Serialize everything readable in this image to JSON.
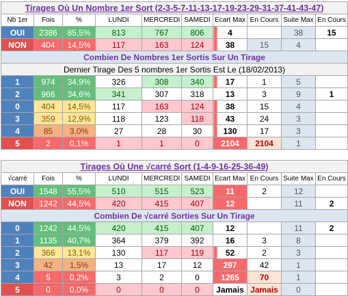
{
  "tables": [
    {
      "title": "Tirages Où Un Nombre 1er Sort (2-3-5-7-11-13-17-19-23-29-31-37-41-43-47)",
      "header": [
        "Nb 1er",
        "Fois",
        "%",
        "LUNDI",
        "MERCREDI",
        "SAMEDI",
        "Ecart Max",
        "En Cours",
        "Suite Max",
        "En Cours"
      ],
      "rows": [
        [
          "OUI",
          "2386",
          "85,5%",
          "813",
          "767",
          "806",
          "4",
          null,
          "38",
          "15"
        ],
        [
          "NON",
          "404",
          "14,5%",
          "117",
          "163",
          "124",
          "38",
          "15",
          "4",
          null
        ]
      ],
      "subtitle": "Combien De Nombres 1er Sortis  Sur Un Tirage",
      "note": "Dernier Tirage Des 5 nombres 1er Sortis Est Le (18/02/2013)",
      "detail_rows": [
        [
          "1",
          "974",
          "34,9%",
          "326",
          "308",
          "340",
          "17",
          "1",
          "5",
          null
        ],
        [
          "2",
          "966",
          "34,6%",
          "341",
          "307",
          "318",
          "13",
          "3",
          "9",
          "1"
        ],
        [
          "0",
          "404",
          "14,5%",
          "117",
          "163",
          "124",
          "38",
          "15",
          "4",
          null
        ],
        [
          "3",
          "359",
          "12,9%",
          "118",
          "123",
          "118",
          "43",
          "24",
          "3",
          null
        ],
        [
          "4",
          "85",
          "3,0%",
          "27",
          "28",
          "30",
          "130",
          "17",
          "3",
          null
        ],
        [
          "5",
          "2",
          "0,1%",
          "1",
          "1",
          "0",
          "2104",
          "2104",
          "1",
          null
        ]
      ]
    },
    {
      "title": "Tirages Où Une  √carré Sort (1-4-9-16-25-36-49)",
      "header": [
        "√carré",
        "Fois",
        "%",
        "LUNDI",
        "MERCREDI",
        "SAMEDI",
        "Ecart Max",
        "En Cours",
        "Suite Max",
        "En Cours"
      ],
      "rows": [
        [
          "OUI",
          "1548",
          "55,5%",
          "510",
          "515",
          "523",
          "11",
          "2",
          "12",
          null
        ],
        [
          "NON",
          "1242",
          "44,5%",
          "420",
          "415",
          "407",
          "12",
          null,
          "11",
          "2"
        ]
      ],
      "subtitle": "Combien De  √carré  Sorties Sur Un Tirage",
      "detail_rows": [
        [
          "0",
          "1242",
          "44,5%",
          "420",
          "415",
          "407",
          "12",
          null,
          "11",
          "2"
        ],
        [
          "1",
          "1135",
          "40,7%",
          "364",
          "379",
          "392",
          "16",
          "3",
          "8",
          null
        ],
        [
          "2",
          "366",
          "13,1%",
          "130",
          "117",
          "119",
          "52",
          "2",
          "3",
          null
        ],
        [
          "3",
          "42",
          "1,5%",
          "13",
          "17",
          "12",
          "297",
          "42",
          "1",
          null
        ],
        [
          "4",
          "5",
          "0,2%",
          "3",
          "2",
          "0",
          "1265",
          "70",
          "1",
          null
        ],
        [
          "5",
          "0",
          "0,0%",
          "0",
          "0",
          "0",
          "Jamais",
          "Jamais",
          "0",
          null
        ]
      ]
    }
  ]
}
